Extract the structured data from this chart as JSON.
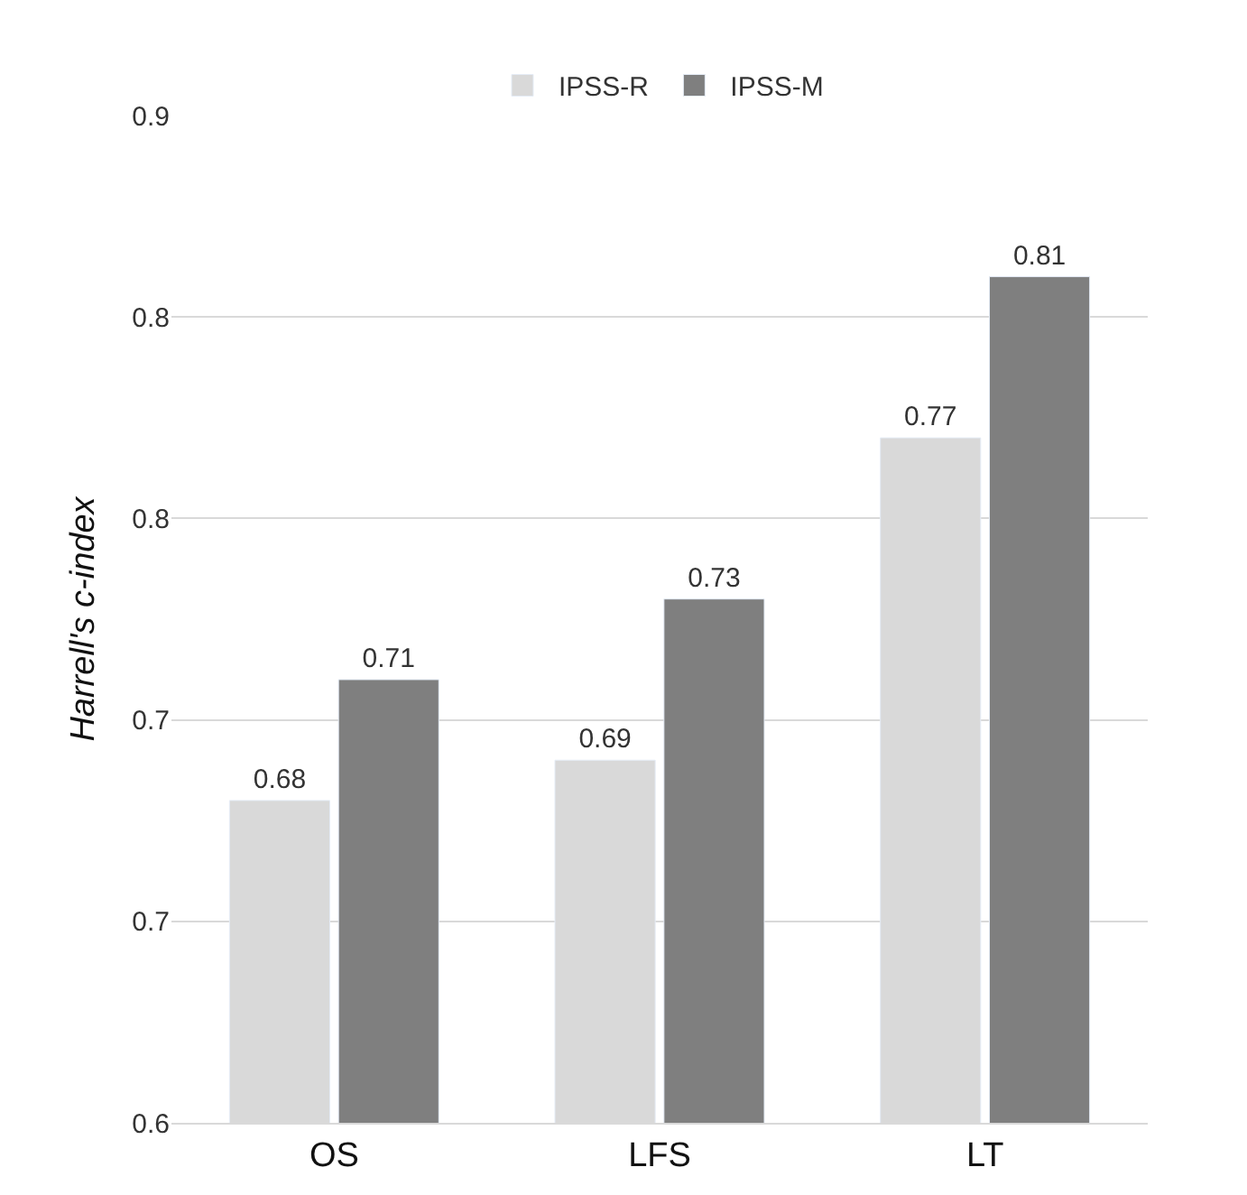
{
  "chart_data": {
    "type": "bar",
    "ylabel": "Harrell's c-index",
    "categories": [
      "OS",
      "LFS",
      "LT"
    ],
    "series": [
      {
        "name": "IPSS-R",
        "color": "#d9d9d9",
        "values": [
          0.68,
          0.69,
          0.77
        ]
      },
      {
        "name": "IPSS-M",
        "color": "#7f7f7f",
        "values": [
          0.71,
          0.73,
          0.81
        ]
      }
    ],
    "ylim": [
      0.6,
      0.85
    ],
    "yticks": [
      {
        "value": 0.6,
        "label": "0.6"
      },
      {
        "value": 0.65,
        "label": "0.7"
      },
      {
        "value": 0.7,
        "label": "0.7"
      },
      {
        "value": 0.75,
        "label": "0.8"
      },
      {
        "value": 0.8,
        "label": "0.8"
      },
      {
        "value": 0.85,
        "label": "0.9"
      }
    ],
    "grid": "y",
    "legend": "top",
    "data_labels": true
  }
}
